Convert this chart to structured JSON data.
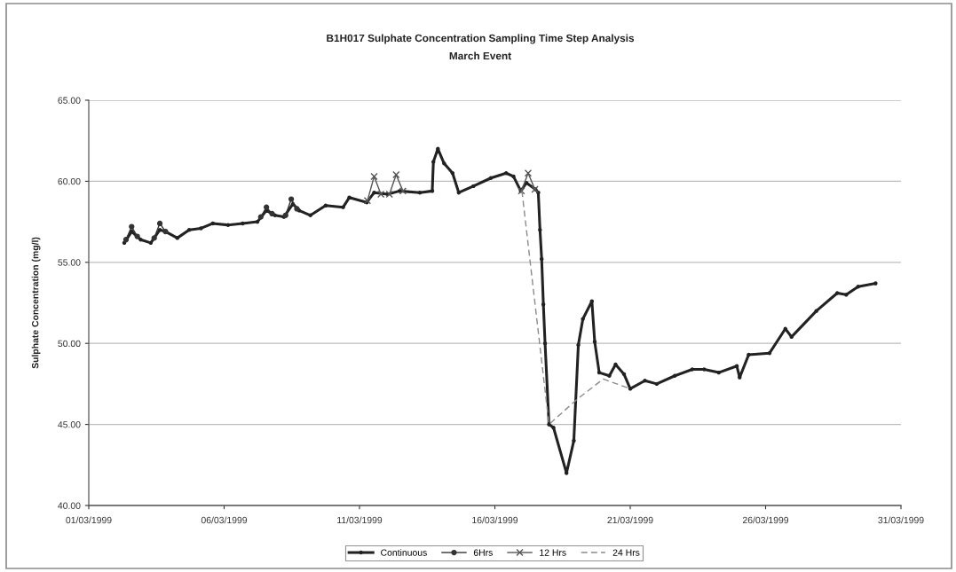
{
  "chart_data": {
    "type": "line",
    "title": "B1H017 Sulphate Concentration Sampling Time Step Analysis",
    "subtitle": "March Event",
    "ylabel": "Sulphate Concentration (mg/l)",
    "xlim": [
      "1999-03-01",
      "1999-03-31"
    ],
    "xticks": [
      {
        "value": "1999-03-01",
        "label": "01/03/1999"
      },
      {
        "value": "1999-03-06",
        "label": "06/03/1999"
      },
      {
        "value": "1999-03-11",
        "label": "11/03/1999"
      },
      {
        "value": "1999-03-16",
        "label": "16/03/1999"
      },
      {
        "value": "1999-03-21",
        "label": "21/03/1999"
      },
      {
        "value": "1999-03-26",
        "label": "26/03/1999"
      },
      {
        "value": "1999-03-31",
        "label": "31/03/1999"
      }
    ],
    "ylim": [
      40,
      65
    ],
    "yticks": [
      {
        "value": 40,
        "label": "40.00"
      },
      {
        "value": 45,
        "label": "45.00"
      },
      {
        "value": 50,
        "label": "50.00"
      },
      {
        "value": 55,
        "label": "55.00"
      },
      {
        "value": 60,
        "label": "60.00"
      },
      {
        "value": 65,
        "label": "65.00"
      }
    ],
    "grid": "y",
    "legend": "bottom",
    "series": [
      {
        "name": "Continuous",
        "color": "#222222",
        "marker": "circle",
        "line_style": "solid",
        "x": [
          "1999-03-02T07:30",
          "1999-03-02T14:00",
          "1999-03-02T22:00",
          "1999-03-03T07:00",
          "1999-03-03T15:00",
          "1999-03-03T20:00",
          "1999-03-04T06:30",
          "1999-03-04T17:00",
          "1999-03-05T03:30",
          "1999-03-05T14:00",
          "1999-03-06T03:30",
          "1999-03-06T16:30",
          "1999-03-07T05:30",
          "1999-03-07T13:30",
          "1999-03-07T21:00",
          "1999-03-08T05:00",
          "1999-03-08T13:00",
          "1999-03-08T18:30",
          "1999-03-09T04:30",
          "1999-03-09T18:00",
          "1999-03-10T09:30",
          "1999-03-10T15:00",
          "1999-03-11T06:30",
          "1999-03-11T13:00",
          "1999-03-12T01:00",
          "1999-03-12T11:30",
          "1999-03-13T05:30",
          "1999-03-13T16:30",
          "1999-03-13T17:30",
          "1999-03-13T21:30",
          "1999-03-14T03:00",
          "1999-03-14T10:30",
          "1999-03-14T16:00",
          "1999-03-15T05:00",
          "1999-03-15T20:30",
          "1999-03-16T10:00",
          "1999-03-16T16:30",
          "1999-03-16T23:00",
          "1999-03-17T04:00",
          "1999-03-17T12:00",
          "1999-03-17T14:30",
          "1999-03-17T16:00",
          "1999-03-17T17:30",
          "1999-03-17T19:00",
          "1999-03-17T20:30",
          "1999-03-18T00:00",
          "1999-03-18T04:00",
          "1999-03-18T15:30",
          "1999-03-18T22:00",
          "1999-03-19T02:00",
          "1999-03-19T06:00",
          "1999-03-19T14:00",
          "1999-03-19T16:30",
          "1999-03-19T20:30",
          "1999-03-20T05:30",
          "1999-03-20T11:00",
          "1999-03-20T18:30",
          "1999-03-21T00:00",
          "1999-03-21T13:00",
          "1999-03-21T23:30",
          "1999-03-22T15:30",
          "1999-03-23T07:00",
          "1999-03-23T17:30",
          "1999-03-24T06:30",
          "1999-03-24T22:30",
          "1999-03-25T01:00",
          "1999-03-25T09:00",
          "1999-03-26T03:30",
          "1999-03-26T17:30",
          "1999-03-26T23:00",
          "1999-03-27T21:00",
          "1999-03-28T15:30",
          "1999-03-28T23:30",
          "1999-03-29T10:00",
          "1999-03-30T01:30"
        ],
        "values": [
          56.2,
          56.9,
          56.4,
          56.2,
          57.0,
          56.9,
          56.5,
          57.0,
          57.1,
          57.4,
          57.3,
          57.4,
          57.5,
          58.2,
          57.9,
          57.8,
          58.6,
          58.2,
          57.9,
          58.5,
          58.4,
          59.0,
          58.7,
          59.3,
          59.2,
          59.4,
          59.3,
          59.4,
          61.2,
          62.0,
          61.1,
          60.5,
          59.3,
          59.7,
          60.2,
          60.5,
          60.3,
          59.4,
          59.9,
          59.5,
          59.3,
          57.0,
          55.2,
          52.4,
          50.0,
          45.0,
          44.8,
          42.0,
          44.0,
          49.9,
          51.5,
          52.6,
          50.1,
          48.2,
          48.0,
          48.7,
          48.1,
          47.2,
          47.7,
          47.5,
          48.0,
          48.4,
          48.4,
          48.2,
          48.6,
          47.9,
          49.3,
          49.4,
          50.9,
          50.4,
          52.0,
          53.1,
          53.0,
          53.5,
          53.7
        ]
      },
      {
        "name": "6Hrs",
        "color": "#333333",
        "marker": "circle",
        "line_style": "solid",
        "x": [
          "1999-03-02T09:00",
          "1999-03-02T14:00",
          "1999-03-02T19:00",
          "1999-03-02T20:00",
          "1999-03-03T10:00",
          "1999-03-03T15:00",
          "1999-03-03T20:00",
          "1999-03-03T22:00",
          "1999-03-07T08:30",
          "1999-03-07T13:30",
          "1999-03-07T18:30",
          "1999-03-07T22:00",
          "1999-03-08T06:30",
          "1999-03-08T11:30",
          "1999-03-08T16:30"
        ],
        "values": [
          56.4,
          57.2,
          56.6,
          null,
          56.5,
          57.4,
          56.9,
          null,
          57.8,
          58.4,
          58.0,
          null,
          57.9,
          58.9,
          58.3
        ]
      },
      {
        "name": "12 Hrs",
        "color": "#555555",
        "marker": "cross",
        "line_style": "solid",
        "x": [
          "1999-03-11T07:00",
          "1999-03-11T13:00",
          "1999-03-11T19:00",
          "1999-03-11T22:00",
          "1999-03-12T02:30",
          "1999-03-12T08:30",
          "1999-03-12T14:30",
          "1999-03-13T00:00",
          "1999-03-16T23:30",
          "1999-03-17T05:30",
          "1999-03-17T11:30"
        ],
        "values": [
          58.8,
          60.3,
          59.2,
          null,
          59.2,
          60.4,
          59.4,
          null,
          59.4,
          60.5,
          59.5
        ]
      },
      {
        "name": "24 Hrs",
        "color": "#8a8a8a",
        "marker": "none",
        "line_style": "dashed",
        "x": [
          "1999-03-17T00:00",
          "1999-03-18T00:00",
          "1999-03-19T00:00",
          "1999-03-20T00:00",
          "1999-03-21T00:00"
        ],
        "values": [
          59.4,
          45.0,
          46.5,
          47.8,
          47.2
        ]
      }
    ]
  }
}
